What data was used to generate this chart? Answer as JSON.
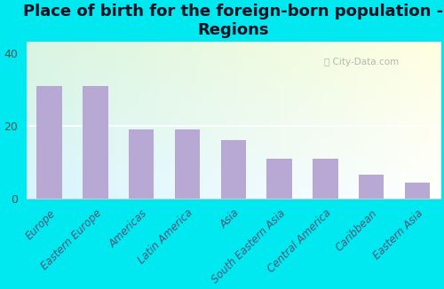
{
  "title": "Place of birth for the foreign-born population -\nRegions",
  "categories": [
    "Europe",
    "Eastern Europe",
    "Americas",
    "Latin America",
    "Asia",
    "South Eastern Asia",
    "Central America",
    "Caribbean",
    "Eastern Asia"
  ],
  "values": [
    31,
    31,
    19,
    19,
    16,
    11,
    11,
    6.5,
    4.5
  ],
  "bar_color": "#b8a9d4",
  "background_outer": "#00e8f0",
  "yticks": [
    0,
    20,
    40
  ],
  "ylim": [
    0,
    43
  ],
  "title_fontsize": 13,
  "tick_label_fontsize": 8.5,
  "ytick_fontsize": 9,
  "watermark": "ⓘ City-Data.com",
  "grad_colors": [
    "#c8ecd8",
    "#f0f8f0",
    "#e8f5f8"
  ],
  "title_color": "#111122"
}
